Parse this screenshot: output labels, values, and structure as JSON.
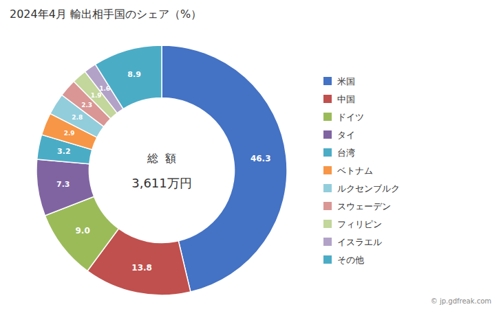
{
  "chart_data": {
    "type": "pie",
    "title": "2024年4月 輸出相手国のシェア（%）",
    "categories": [
      "米国",
      "中国",
      "ドイツ",
      "タイ",
      "台湾",
      "ベトナム",
      "ルクセンブルク",
      "スウェーデン",
      "フィリピン",
      "イスラエル",
      "その他"
    ],
    "values": [
      46.3,
      13.8,
      9.0,
      7.3,
      3.2,
      2.9,
      2.8,
      2.3,
      1.9,
      1.6,
      8.9
    ],
    "value_labels": [
      "46.3",
      "13.8",
      "9.0",
      "7.3",
      "3.2",
      "2.9",
      "2.8",
      "2.3",
      "1.9",
      "1.6",
      "8.9"
    ],
    "colors": [
      "#4472C4",
      "#C0504D",
      "#9BBB59",
      "#8064A2",
      "#4BACC6",
      "#F79646",
      "#92CDDC",
      "#D99694",
      "#C3D69B",
      "#B2A2C7",
      "#4BACC6"
    ],
    "data_labels": true,
    "legend": "right",
    "annotations": [
      "総  額",
      "3,611万円",
      "© jp.gdfreak.com"
    ]
  }
}
